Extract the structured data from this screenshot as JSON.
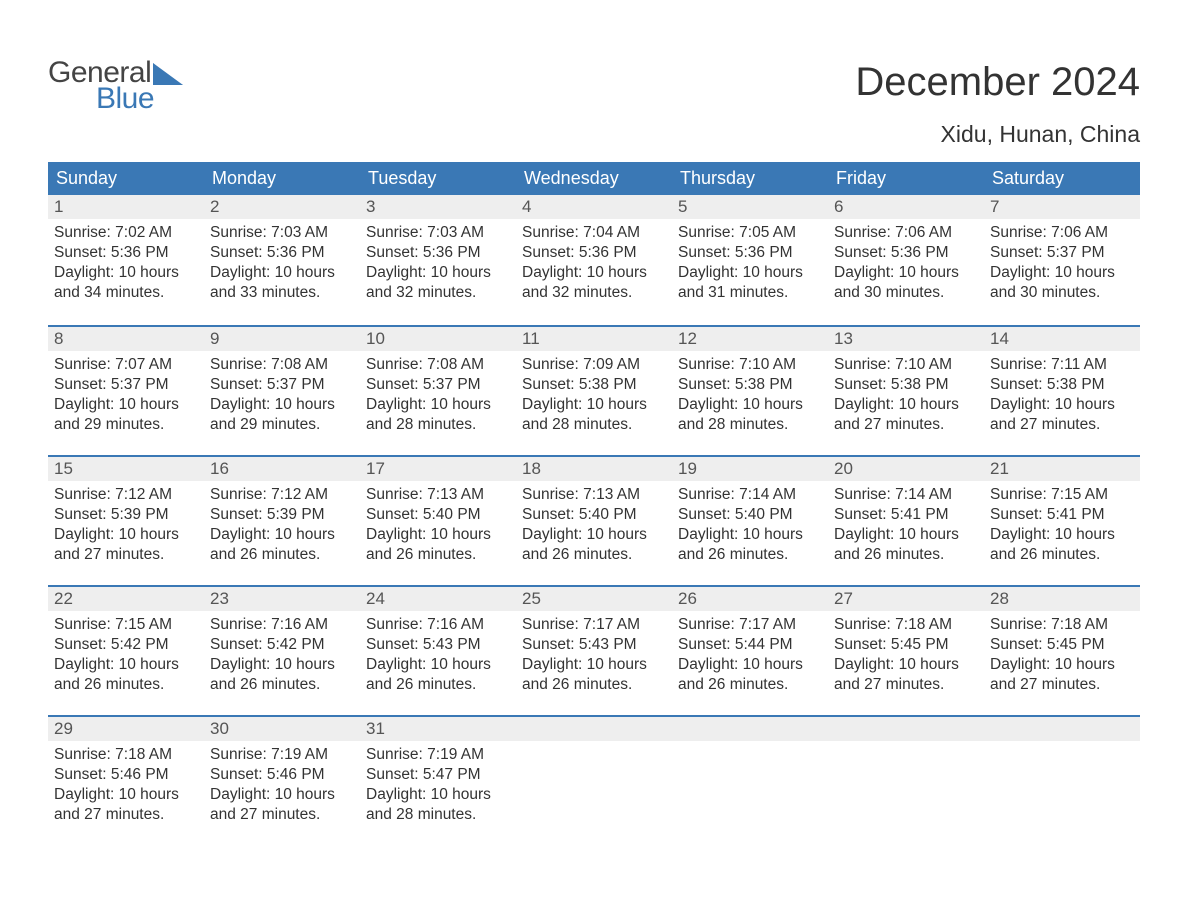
{
  "brand": {
    "text_general": "General",
    "text_blue": "Blue",
    "flag_color": "#3a78b5",
    "general_color": "#444444"
  },
  "title": "December 2024",
  "location": "Xidu, Hunan, China",
  "colors": {
    "header_bg": "#3a78b5",
    "header_text": "#ffffff",
    "daynum_bg": "#eeeeee",
    "daynum_text": "#555555",
    "body_text": "#333333",
    "week_border": "#3a78b5",
    "page_bg": "#ffffff"
  },
  "fonts": {
    "title_size_pt": 40,
    "location_size_pt": 23,
    "weekday_size_pt": 18,
    "daynum_size_pt": 17,
    "body_size_pt": 15.5,
    "logo_size_pt": 30
  },
  "calendar": {
    "type": "table",
    "columns": [
      "Sunday",
      "Monday",
      "Tuesday",
      "Wednesday",
      "Thursday",
      "Friday",
      "Saturday"
    ],
    "weeks": [
      [
        {
          "n": "1",
          "sunrise": "Sunrise: 7:02 AM",
          "sunset": "Sunset: 5:36 PM",
          "day1": "Daylight: 10 hours",
          "day2": "and 34 minutes."
        },
        {
          "n": "2",
          "sunrise": "Sunrise: 7:03 AM",
          "sunset": "Sunset: 5:36 PM",
          "day1": "Daylight: 10 hours",
          "day2": "and 33 minutes."
        },
        {
          "n": "3",
          "sunrise": "Sunrise: 7:03 AM",
          "sunset": "Sunset: 5:36 PM",
          "day1": "Daylight: 10 hours",
          "day2": "and 32 minutes."
        },
        {
          "n": "4",
          "sunrise": "Sunrise: 7:04 AM",
          "sunset": "Sunset: 5:36 PM",
          "day1": "Daylight: 10 hours",
          "day2": "and 32 minutes."
        },
        {
          "n": "5",
          "sunrise": "Sunrise: 7:05 AM",
          "sunset": "Sunset: 5:36 PM",
          "day1": "Daylight: 10 hours",
          "day2": "and 31 minutes."
        },
        {
          "n": "6",
          "sunrise": "Sunrise: 7:06 AM",
          "sunset": "Sunset: 5:36 PM",
          "day1": "Daylight: 10 hours",
          "day2": "and 30 minutes."
        },
        {
          "n": "7",
          "sunrise": "Sunrise: 7:06 AM",
          "sunset": "Sunset: 5:37 PM",
          "day1": "Daylight: 10 hours",
          "day2": "and 30 minutes."
        }
      ],
      [
        {
          "n": "8",
          "sunrise": "Sunrise: 7:07 AM",
          "sunset": "Sunset: 5:37 PM",
          "day1": "Daylight: 10 hours",
          "day2": "and 29 minutes."
        },
        {
          "n": "9",
          "sunrise": "Sunrise: 7:08 AM",
          "sunset": "Sunset: 5:37 PM",
          "day1": "Daylight: 10 hours",
          "day2": "and 29 minutes."
        },
        {
          "n": "10",
          "sunrise": "Sunrise: 7:08 AM",
          "sunset": "Sunset: 5:37 PM",
          "day1": "Daylight: 10 hours",
          "day2": "and 28 minutes."
        },
        {
          "n": "11",
          "sunrise": "Sunrise: 7:09 AM",
          "sunset": "Sunset: 5:38 PM",
          "day1": "Daylight: 10 hours",
          "day2": "and 28 minutes."
        },
        {
          "n": "12",
          "sunrise": "Sunrise: 7:10 AM",
          "sunset": "Sunset: 5:38 PM",
          "day1": "Daylight: 10 hours",
          "day2": "and 28 minutes."
        },
        {
          "n": "13",
          "sunrise": "Sunrise: 7:10 AM",
          "sunset": "Sunset: 5:38 PM",
          "day1": "Daylight: 10 hours",
          "day2": "and 27 minutes."
        },
        {
          "n": "14",
          "sunrise": "Sunrise: 7:11 AM",
          "sunset": "Sunset: 5:38 PM",
          "day1": "Daylight: 10 hours",
          "day2": "and 27 minutes."
        }
      ],
      [
        {
          "n": "15",
          "sunrise": "Sunrise: 7:12 AM",
          "sunset": "Sunset: 5:39 PM",
          "day1": "Daylight: 10 hours",
          "day2": "and 27 minutes."
        },
        {
          "n": "16",
          "sunrise": "Sunrise: 7:12 AM",
          "sunset": "Sunset: 5:39 PM",
          "day1": "Daylight: 10 hours",
          "day2": "and 26 minutes."
        },
        {
          "n": "17",
          "sunrise": "Sunrise: 7:13 AM",
          "sunset": "Sunset: 5:40 PM",
          "day1": "Daylight: 10 hours",
          "day2": "and 26 minutes."
        },
        {
          "n": "18",
          "sunrise": "Sunrise: 7:13 AM",
          "sunset": "Sunset: 5:40 PM",
          "day1": "Daylight: 10 hours",
          "day2": "and 26 minutes."
        },
        {
          "n": "19",
          "sunrise": "Sunrise: 7:14 AM",
          "sunset": "Sunset: 5:40 PM",
          "day1": "Daylight: 10 hours",
          "day2": "and 26 minutes."
        },
        {
          "n": "20",
          "sunrise": "Sunrise: 7:14 AM",
          "sunset": "Sunset: 5:41 PM",
          "day1": "Daylight: 10 hours",
          "day2": "and 26 minutes."
        },
        {
          "n": "21",
          "sunrise": "Sunrise: 7:15 AM",
          "sunset": "Sunset: 5:41 PM",
          "day1": "Daylight: 10 hours",
          "day2": "and 26 minutes."
        }
      ],
      [
        {
          "n": "22",
          "sunrise": "Sunrise: 7:15 AM",
          "sunset": "Sunset: 5:42 PM",
          "day1": "Daylight: 10 hours",
          "day2": "and 26 minutes."
        },
        {
          "n": "23",
          "sunrise": "Sunrise: 7:16 AM",
          "sunset": "Sunset: 5:42 PM",
          "day1": "Daylight: 10 hours",
          "day2": "and 26 minutes."
        },
        {
          "n": "24",
          "sunrise": "Sunrise: 7:16 AM",
          "sunset": "Sunset: 5:43 PM",
          "day1": "Daylight: 10 hours",
          "day2": "and 26 minutes."
        },
        {
          "n": "25",
          "sunrise": "Sunrise: 7:17 AM",
          "sunset": "Sunset: 5:43 PM",
          "day1": "Daylight: 10 hours",
          "day2": "and 26 minutes."
        },
        {
          "n": "26",
          "sunrise": "Sunrise: 7:17 AM",
          "sunset": "Sunset: 5:44 PM",
          "day1": "Daylight: 10 hours",
          "day2": "and 26 minutes."
        },
        {
          "n": "27",
          "sunrise": "Sunrise: 7:18 AM",
          "sunset": "Sunset: 5:45 PM",
          "day1": "Daylight: 10 hours",
          "day2": "and 27 minutes."
        },
        {
          "n": "28",
          "sunrise": "Sunrise: 7:18 AM",
          "sunset": "Sunset: 5:45 PM",
          "day1": "Daylight: 10 hours",
          "day2": "and 27 minutes."
        }
      ],
      [
        {
          "n": "29",
          "sunrise": "Sunrise: 7:18 AM",
          "sunset": "Sunset: 5:46 PM",
          "day1": "Daylight: 10 hours",
          "day2": "and 27 minutes."
        },
        {
          "n": "30",
          "sunrise": "Sunrise: 7:19 AM",
          "sunset": "Sunset: 5:46 PM",
          "day1": "Daylight: 10 hours",
          "day2": "and 27 minutes."
        },
        {
          "n": "31",
          "sunrise": "Sunrise: 7:19 AM",
          "sunset": "Sunset: 5:47 PM",
          "day1": "Daylight: 10 hours",
          "day2": "and 28 minutes."
        },
        null,
        null,
        null,
        null
      ]
    ]
  }
}
